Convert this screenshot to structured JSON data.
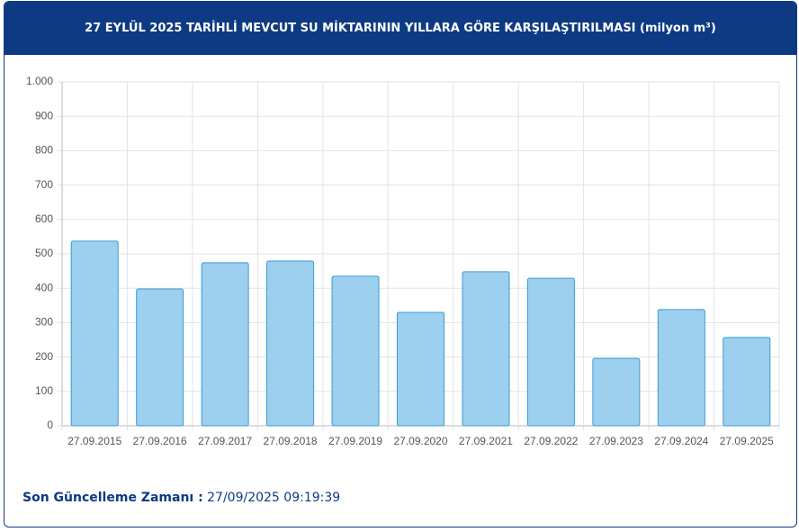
{
  "chart_data": {
    "type": "bar",
    "title": "27 EYLÜL 2025 TARİHLİ MEVCUT SU MİKTARININ YILLARA GÖRE KARŞILAŞTIRILMASI (milyon m³)",
    "categories": [
      "27.09.2015",
      "27.09.2016",
      "27.09.2017",
      "27.09.2018",
      "27.09.2019",
      "27.09.2020",
      "27.09.2021",
      "27.09.2022",
      "27.09.2023",
      "27.09.2024",
      "27.09.2025"
    ],
    "values": [
      537,
      398,
      474,
      479,
      435,
      330,
      448,
      429,
      196,
      338,
      257
    ],
    "color": "#9dd0ee",
    "ylim": [
      0,
      1000
    ],
    "yticks": [
      0,
      100,
      200,
      300,
      400,
      500,
      600,
      700,
      800,
      900,
      {
        "value": 1000,
        "label": "1.000"
      }
    ],
    "grid": true
  },
  "footer": {
    "label": "Son Güncelleme Zamanı :",
    "value": "27/09/2025 09:19:39"
  }
}
